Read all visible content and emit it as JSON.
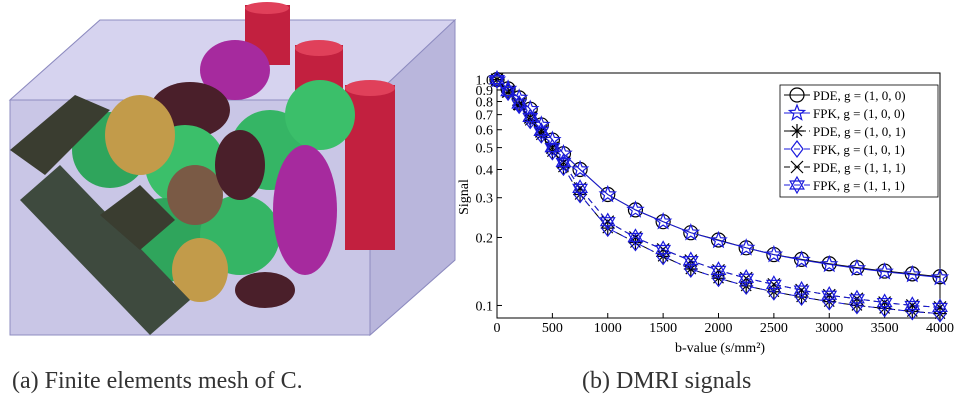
{
  "captions": [
    "(a) Finite elements mesh of C.",
    "(b) DMRI signals"
  ],
  "chart_data": {
    "type": "line",
    "x_label": "b-value (s/mm²)",
    "y_label": "Signal",
    "x": [
      0,
      100,
      200,
      300,
      400,
      500,
      600,
      750,
      1000,
      1250,
      1500,
      1750,
      2000,
      2250,
      2500,
      2750,
      3000,
      3250,
      3500,
      3750,
      4000
    ],
    "xlim": [
      0,
      4000
    ],
    "xticks": [
      0,
      500,
      1000,
      1500,
      2000,
      2500,
      3000,
      3500,
      4000
    ],
    "ylim": [
      0.088,
      1.07
    ],
    "log_y": true,
    "yticks": [
      0.1,
      0.2,
      0.3,
      0.4,
      0.5,
      0.6,
      0.7,
      0.8,
      0.9,
      {
        "value": 1,
        "label": "1.0"
      }
    ],
    "legend_position": "upper right",
    "series": [
      {
        "name": "PDE, g = (1, 0, 0)",
        "color": "#000000",
        "marker": "circle",
        "line_style": "solid",
        "values": [
          1.0,
          0.91,
          0.83,
          0.74,
          0.63,
          0.54,
          0.47,
          0.4,
          0.31,
          0.265,
          0.235,
          0.21,
          0.195,
          0.18,
          0.168,
          0.16,
          0.153,
          0.147,
          0.142,
          0.138,
          0.134
        ]
      },
      {
        "name": "FPK, g = (1, 0, 0)",
        "color": "#1a1adc",
        "marker": "star",
        "line_style": "solid",
        "values": [
          1.0,
          0.91,
          0.83,
          0.74,
          0.63,
          0.54,
          0.47,
          0.4,
          0.31,
          0.265,
          0.235,
          0.21,
          0.194,
          0.18,
          0.168,
          0.159,
          0.152,
          0.146,
          0.141,
          0.137,
          0.133
        ]
      },
      {
        "name": "PDE, g = (1, 0, 1)",
        "color": "#000000",
        "marker": "asterisk",
        "line_style": "dashdot",
        "values": [
          1.0,
          0.88,
          0.77,
          0.66,
          0.57,
          0.48,
          0.41,
          0.31,
          0.22,
          0.19,
          0.165,
          0.145,
          0.132,
          0.122,
          0.115,
          0.109,
          0.104,
          0.1,
          0.097,
          0.094,
          0.092
        ]
      },
      {
        "name": "FPK, g = (1, 0, 1)",
        "color": "#1a1adc",
        "marker": "diamond",
        "line_style": "dashed",
        "values": [
          1.0,
          0.88,
          0.77,
          0.66,
          0.57,
          0.48,
          0.41,
          0.31,
          0.22,
          0.19,
          0.165,
          0.145,
          0.132,
          0.122,
          0.115,
          0.109,
          0.104,
          0.1,
          0.097,
          0.094,
          0.092
        ]
      },
      {
        "name": "PDE, g = (1, 1, 1)",
        "color": "#000000",
        "marker": "x",
        "line_style": "dashed",
        "values": [
          1.0,
          0.885,
          0.78,
          0.68,
          0.59,
          0.5,
          0.43,
          0.33,
          0.235,
          0.2,
          0.177,
          0.158,
          0.143,
          0.132,
          0.124,
          0.117,
          0.111,
          0.107,
          0.103,
          0.1,
          0.098
        ]
      },
      {
        "name": "FPK, g = (1, 1, 1)",
        "color": "#1a1adc",
        "marker": "hexagram",
        "line_style": "dashed",
        "values": [
          1.0,
          0.885,
          0.78,
          0.68,
          0.59,
          0.5,
          0.43,
          0.33,
          0.235,
          0.2,
          0.177,
          0.158,
          0.143,
          0.132,
          0.124,
          0.117,
          0.111,
          0.107,
          0.103,
          0.1,
          0.098
        ]
      }
    ]
  }
}
